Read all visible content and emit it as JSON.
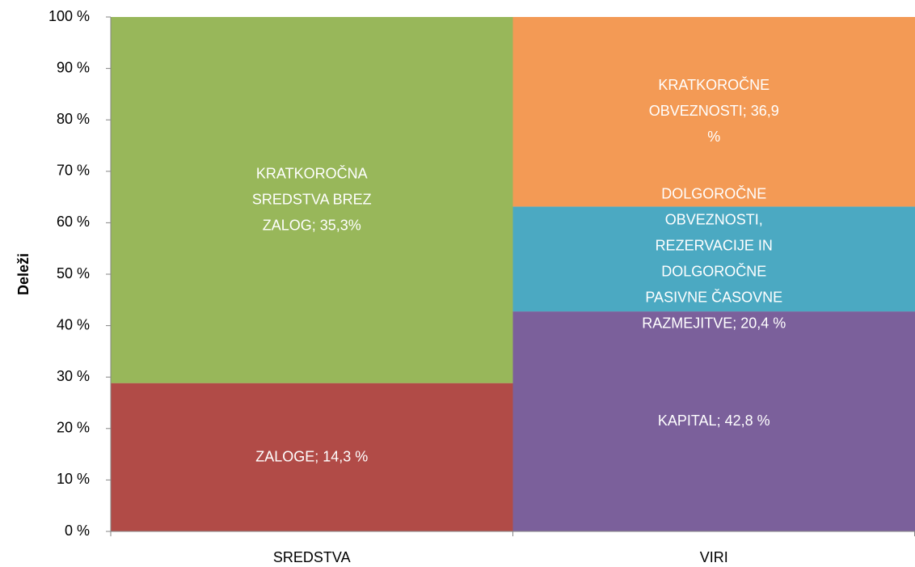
{
  "chart_data": {
    "type": "bar",
    "stacked": "percent",
    "y_label": "Deleži",
    "categories": [
      "SREDSTVA",
      "VIRI"
    ],
    "series": [
      {
        "color": "#b14b47",
        "values": [
          14.3,
          null
        ],
        "value_labels": [
          "ZALOGE; 14,3 %",
          null
        ]
      },
      {
        "color": "#98b75a",
        "values": [
          35.3,
          null
        ],
        "value_labels": [
          "KRATKOROČNA SREDSTVA BREZ ZALOG; 35,3%",
          null
        ]
      },
      {
        "color": "#7b609b",
        "values": [
          null,
          42.8
        ],
        "value_labels": [
          null,
          "KAPITAL; 42,8 %"
        ]
      },
      {
        "color": "#4ba9c2",
        "values": [
          null,
          20.4
        ],
        "value_labels": [
          null,
          "DOLGOROČNE OBVEZNOSTI, REZERVACIJE IN DOLGOROČNE PASIVNE ČASOVNE RAZMEJITVE; 20,4 %"
        ]
      },
      {
        "color": "#f39a55",
        "values": [
          null,
          36.9
        ],
        "value_labels": [
          null,
          "KRATKOROČNE OBVEZNOSTI; 36,9 %"
        ]
      }
    ],
    "ylim": [
      0,
      100
    ],
    "yticks": [
      {
        "value": 0,
        "label": "0 %"
      },
      {
        "value": 10,
        "label": "10 %"
      },
      {
        "value": 20,
        "label": "20 %"
      },
      {
        "value": 30,
        "label": "30 %"
      },
      {
        "value": 40,
        "label": "40 %"
      },
      {
        "value": 50,
        "label": "50 %"
      },
      {
        "value": 60,
        "label": "60 %"
      },
      {
        "value": 70,
        "label": "70 %"
      },
      {
        "value": 80,
        "label": "80 %"
      },
      {
        "value": 90,
        "label": "90 %"
      },
      {
        "value": 100,
        "label": "100 %"
      }
    ],
    "grid": false
  }
}
